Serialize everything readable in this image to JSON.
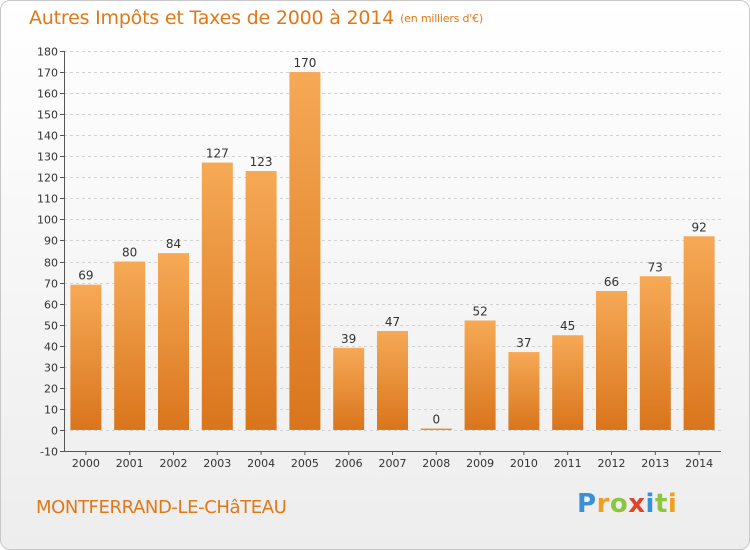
{
  "title": "Autres Impôts et Taxes de 2000 à 2014",
  "subtitle": "(en milliers d'€)",
  "commune": "MONTFERRAND-LE-CHâTEAU",
  "brand": {
    "letters": [
      "P",
      "r",
      "o",
      "x",
      "i",
      "t",
      "i"
    ],
    "colors": [
      "#3a8fd6",
      "#f0a020",
      "#8cc63e",
      "#e0452b",
      "#3a8fd6",
      "#8cc63e",
      "#f0a020"
    ]
  },
  "colors": {
    "accent": "#e07818",
    "bar_light": "#f6a956",
    "bar_dark": "#d9751c",
    "grid": "#d2d2d2"
  },
  "chart_data": {
    "type": "bar",
    "categories": [
      "2000",
      "2001",
      "2002",
      "2003",
      "2004",
      "2005",
      "2006",
      "2007",
      "2008",
      "2009",
      "2010",
      "2011",
      "2012",
      "2013",
      "2014"
    ],
    "values": [
      69,
      80,
      84,
      127,
      123,
      170,
      39,
      47,
      0,
      52,
      37,
      45,
      66,
      73,
      92
    ],
    "data_labels": [
      "69",
      "80",
      "84",
      "127",
      "123",
      "170",
      "39",
      "47",
      "0",
      "52",
      "37",
      "45",
      "66",
      "73",
      "92"
    ],
    "title": "Autres Impôts et Taxes de 2000 à 2014",
    "subtitle": "(en milliers d'€)",
    "xlabel": "",
    "ylabel": "",
    "ylim": [
      -10,
      180
    ],
    "yticks": [
      -10,
      0,
      10,
      20,
      30,
      40,
      50,
      60,
      70,
      80,
      90,
      100,
      110,
      120,
      130,
      140,
      150,
      160,
      170,
      180
    ],
    "grid": true,
    "legend": "none"
  }
}
